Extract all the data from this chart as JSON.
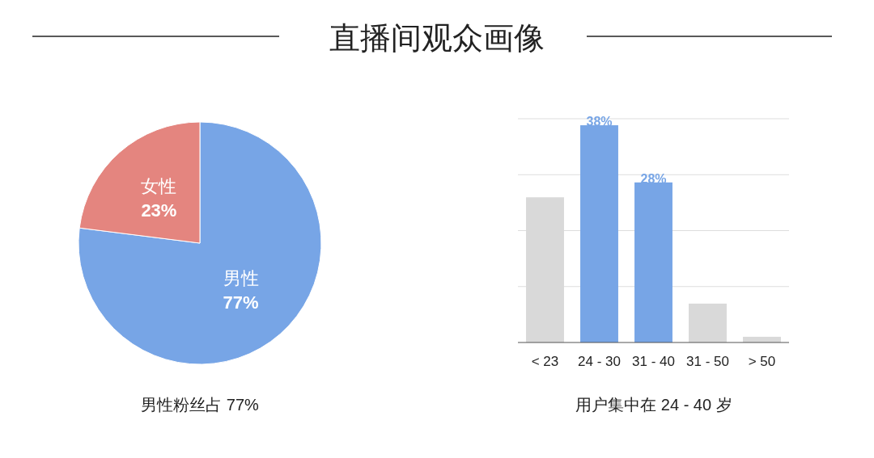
{
  "chart_data": [
    {
      "type": "pie",
      "title": "直播间观众画像",
      "categories": [
        "男性",
        "女性"
      ],
      "values": [
        77,
        23
      ],
      "colors": [
        "#77a5e6",
        "#e4857f"
      ],
      "value_labels": [
        "77%",
        "23%"
      ],
      "annotations": [
        "男性粉丝占 77%"
      ]
    },
    {
      "type": "bar",
      "categories": [
        "< 23",
        "24 - 30",
        "31 - 40",
        "31 - 50",
        "> 50"
      ],
      "values": [
        25.4,
        38,
        28,
        6.8,
        1
      ],
      "colors": [
        "#d9d9d9",
        "#77a5e6",
        "#77a5e6",
        "#d9d9d9",
        "#d9d9d9"
      ],
      "value_labels": [
        null,
        "38%",
        "28%",
        null,
        null
      ],
      "grid": true,
      "annotations": [
        "用户集中在 24 - 40 岁"
      ]
    }
  ]
}
